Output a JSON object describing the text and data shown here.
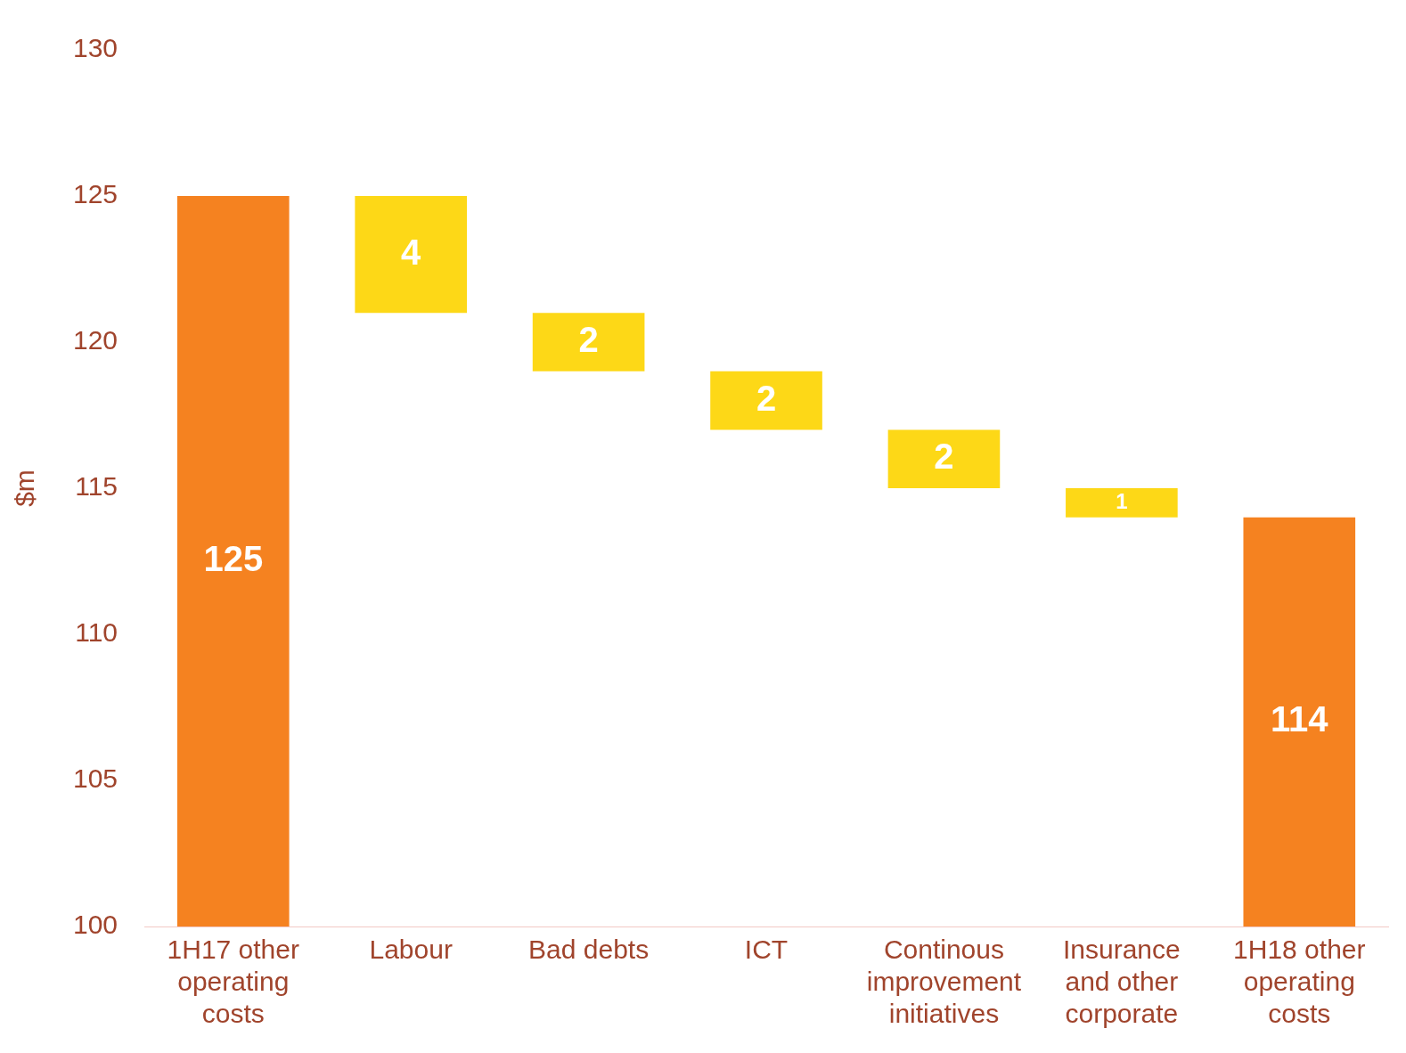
{
  "chart_data": {
    "type": "bar",
    "ylabel": "$m",
    "categories": [
      "1H17 other operating costs",
      "Labour",
      "Bad debts",
      "ICT",
      "Continous improvement initiatives",
      "Insurance and other corporate",
      "1H18 other operating costs"
    ],
    "values": [
      125,
      4,
      2,
      2,
      2,
      1,
      114
    ],
    "base": [
      null,
      121,
      119,
      117,
      115,
      114,
      null
    ],
    "colors": [
      "#f58220",
      "#fdd817",
      "#fdd817",
      "#fdd817",
      "#fdd817",
      "#fdd817",
      "#f58220"
    ],
    "ylim": [
      100,
      130
    ],
    "yticks": [
      100,
      105,
      110,
      115,
      120,
      125,
      130
    ],
    "grid": false,
    "legend": false,
    "data_labels": true
  }
}
